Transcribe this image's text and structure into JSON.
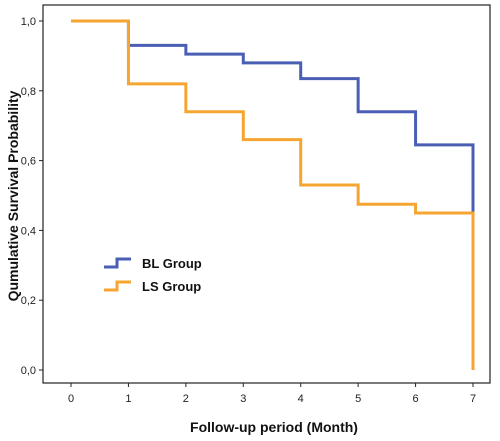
{
  "chart_data": {
    "type": "line",
    "subtype": "step",
    "xlabel": "Follow-up period (Month)",
    "ylabel": "Qumulative Survival Probability",
    "xlim": [
      0,
      7
    ],
    "ylim": [
      0,
      1
    ],
    "x_ticks": [
      "0",
      "1",
      "2",
      "3",
      "4",
      "5",
      "6",
      "7"
    ],
    "y_ticks": [
      "0,0",
      "0,2",
      "0,4",
      "0,6",
      "0,8",
      "1,0"
    ],
    "grid": false,
    "legend_position": "lower-left",
    "series": [
      {
        "name": "BL Group",
        "color": "#4a5fb4",
        "points": [
          [
            0,
            1.0
          ],
          [
            1,
            1.0
          ],
          [
            1,
            0.93
          ],
          [
            2,
            0.93
          ],
          [
            2,
            0.905
          ],
          [
            3,
            0.905
          ],
          [
            3,
            0.88
          ],
          [
            4,
            0.88
          ],
          [
            4,
            0.835
          ],
          [
            5,
            0.835
          ],
          [
            5,
            0.74
          ],
          [
            6,
            0.74
          ],
          [
            6,
            0.645
          ],
          [
            7,
            0.645
          ],
          [
            7,
            0.45
          ]
        ]
      },
      {
        "name": "LS Group",
        "color": "#f5a530",
        "points": [
          [
            0,
            1.0
          ],
          [
            1,
            1.0
          ],
          [
            1,
            0.82
          ],
          [
            2,
            0.82
          ],
          [
            2,
            0.74
          ],
          [
            3,
            0.74
          ],
          [
            3,
            0.66
          ],
          [
            4,
            0.66
          ],
          [
            4,
            0.53
          ],
          [
            5,
            0.53
          ],
          [
            5,
            0.475
          ],
          [
            6,
            0.475
          ],
          [
            6,
            0.45
          ],
          [
            7,
            0.45
          ],
          [
            7,
            0.0
          ]
        ]
      }
    ]
  }
}
